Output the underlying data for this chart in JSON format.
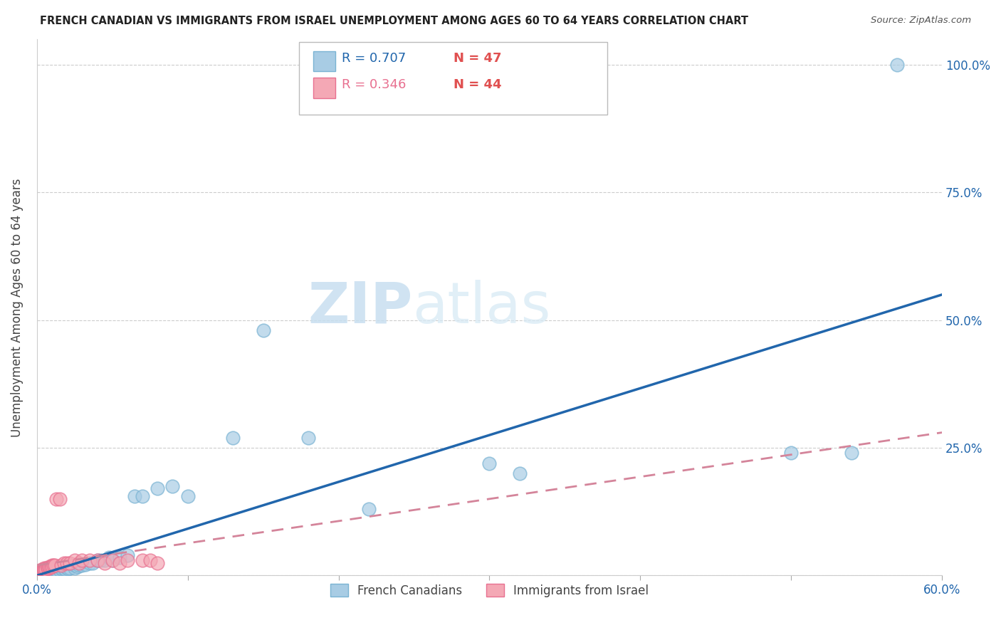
{
  "title": "FRENCH CANADIAN VS IMMIGRANTS FROM ISRAEL UNEMPLOYMENT AMONG AGES 60 TO 64 YEARS CORRELATION CHART",
  "source": "Source: ZipAtlas.com",
  "ylabel": "Unemployment Among Ages 60 to 64 years",
  "xlabel": "",
  "xlim": [
    0.0,
    0.6
  ],
  "ylim": [
    0.0,
    1.05
  ],
  "x_ticks": [
    0.0,
    0.1,
    0.2,
    0.3,
    0.4,
    0.5,
    0.6
  ],
  "x_tick_labels": [
    "0.0%",
    "",
    "",
    "",
    "",
    "",
    "60.0%"
  ],
  "y_tick_positions": [
    0.0,
    0.25,
    0.5,
    0.75,
    1.0
  ],
  "y_tick_labels": [
    "",
    "25.0%",
    "50.0%",
    "75.0%",
    "100.0%"
  ],
  "watermark_zip": "ZIP",
  "watermark_atlas": "atlas",
  "legend_r1": "R = 0.707",
  "legend_n1": "N = 47",
  "legend_r2": "R = 0.346",
  "legend_n2": "N = 44",
  "blue_color": "#a8cce4",
  "blue_edge_color": "#7ab3d3",
  "pink_color": "#f4a8b5",
  "pink_edge_color": "#e87090",
  "blue_line_color": "#2166ac",
  "pink_line_color": "#d4849a",
  "blue_regression": [
    0.0,
    0.0,
    0.6,
    0.55
  ],
  "pink_regression": [
    0.0,
    0.02,
    0.6,
    0.28
  ],
  "blue_scatter": {
    "x": [
      0.005,
      0.007,
      0.008,
      0.009,
      0.01,
      0.01,
      0.01,
      0.012,
      0.013,
      0.015,
      0.015,
      0.016,
      0.017,
      0.018,
      0.019,
      0.02,
      0.021,
      0.022,
      0.025,
      0.025,
      0.027,
      0.028,
      0.03,
      0.032,
      0.035,
      0.037,
      0.04,
      0.042,
      0.045,
      0.048,
      0.05,
      0.055,
      0.06,
      0.065,
      0.07,
      0.08,
      0.09,
      0.1,
      0.13,
      0.15,
      0.18,
      0.22,
      0.3,
      0.32,
      0.5,
      0.54,
      0.57
    ],
    "y": [
      0.01,
      0.01,
      0.01,
      0.01,
      0.01,
      0.012,
      0.01,
      0.012,
      0.01,
      0.012,
      0.01,
      0.013,
      0.012,
      0.013,
      0.012,
      0.015,
      0.013,
      0.015,
      0.015,
      0.02,
      0.018,
      0.02,
      0.02,
      0.022,
      0.025,
      0.025,
      0.03,
      0.03,
      0.03,
      0.035,
      0.03,
      0.035,
      0.04,
      0.155,
      0.155,
      0.17,
      0.175,
      0.155,
      0.27,
      0.48,
      0.27,
      0.13,
      0.22,
      0.2,
      0.24,
      0.24,
      1.0
    ]
  },
  "pink_scatter": {
    "x": [
      0.003,
      0.003,
      0.003,
      0.003,
      0.004,
      0.004,
      0.004,
      0.004,
      0.005,
      0.005,
      0.005,
      0.005,
      0.005,
      0.005,
      0.005,
      0.006,
      0.006,
      0.007,
      0.007,
      0.008,
      0.008,
      0.009,
      0.01,
      0.01,
      0.011,
      0.012,
      0.013,
      0.015,
      0.016,
      0.018,
      0.02,
      0.022,
      0.025,
      0.028,
      0.03,
      0.035,
      0.04,
      0.045,
      0.05,
      0.055,
      0.06,
      0.07,
      0.075,
      0.08
    ],
    "y": [
      0.01,
      0.01,
      0.01,
      0.012,
      0.01,
      0.01,
      0.012,
      0.01,
      0.01,
      0.01,
      0.012,
      0.01,
      0.01,
      0.015,
      0.012,
      0.015,
      0.012,
      0.015,
      0.015,
      0.015,
      0.018,
      0.018,
      0.02,
      0.018,
      0.02,
      0.02,
      0.15,
      0.15,
      0.02,
      0.025,
      0.025,
      0.025,
      0.03,
      0.025,
      0.03,
      0.03,
      0.03,
      0.025,
      0.03,
      0.025,
      0.03,
      0.03,
      0.03,
      0.025
    ]
  }
}
